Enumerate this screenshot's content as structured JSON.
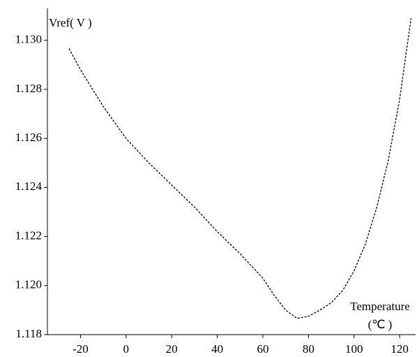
{
  "chart_data": {
    "type": "line",
    "y_label": "Vref( V )",
    "x_label": "Temperature",
    "x_unit": "(℃ )",
    "x": [
      -25,
      -20,
      -10,
      0,
      10,
      20,
      30,
      40,
      50,
      60,
      65,
      70,
      75,
      80,
      85,
      90,
      95,
      100,
      105,
      110,
      115,
      120,
      125
    ],
    "series": [
      {
        "color": "#000000",
        "values": [
          1.12966,
          1.1288,
          1.1273,
          1.126,
          1.125,
          1.1241,
          1.1232,
          1.1222,
          1.1213,
          1.1203,
          1.1196,
          1.119,
          1.11866,
          1.11875,
          1.119,
          1.1193,
          1.1198,
          1.1206,
          1.1217,
          1.1232,
          1.1251,
          1.1276,
          1.1309
        ]
      }
    ],
    "xlim": [
      -34.5,
      127
    ],
    "ylim": [
      1.118,
      1.1313
    ],
    "xticks": [
      -20,
      0,
      20,
      40,
      60,
      80,
      100,
      120
    ],
    "yticks": [
      1.118,
      {
        "value": 1.12,
        "label": "1.120"
      },
      1.122,
      1.124,
      1.126,
      1.128,
      {
        "value": 1.13,
        "label": "1.130"
      }
    ],
    "dashed": true
  }
}
